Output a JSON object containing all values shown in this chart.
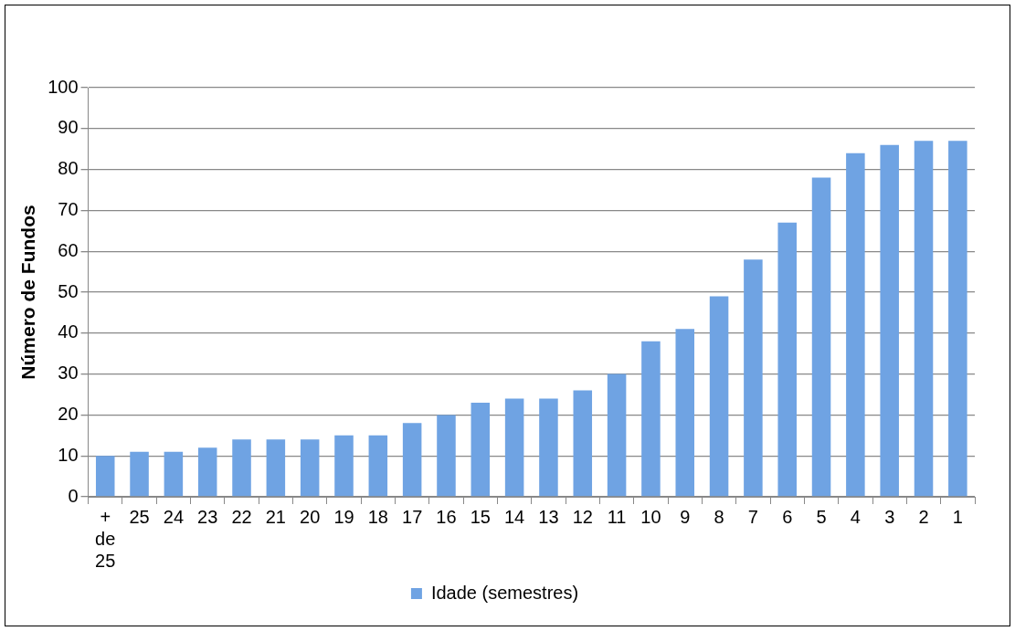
{
  "chart_data": {
    "type": "bar",
    "ylabel": "Número de Fundos",
    "categories": [
      "+ de 25",
      "25",
      "24",
      "23",
      "22",
      "21",
      "20",
      "19",
      "18",
      "17",
      "16",
      "15",
      "14",
      "13",
      "12",
      "11",
      "10",
      "9",
      "8",
      "7",
      "6",
      "5",
      "4",
      "3",
      "2",
      "1"
    ],
    "series": [
      {
        "name": "Idade (semestres)",
        "color": "#6fa3e3",
        "values": [
          10,
          11,
          11,
          12,
          14,
          14,
          14,
          15,
          15,
          18,
          20,
          23,
          24,
          24,
          26,
          30,
          38,
          41,
          49,
          58,
          67,
          78,
          84,
          86,
          87,
          87
        ]
      }
    ],
    "ylim": [
      0,
      100
    ],
    "yticks": [
      0,
      10,
      20,
      30,
      40,
      50,
      60,
      70,
      80,
      90,
      100
    ],
    "grid": "y",
    "legend": "bottom"
  }
}
